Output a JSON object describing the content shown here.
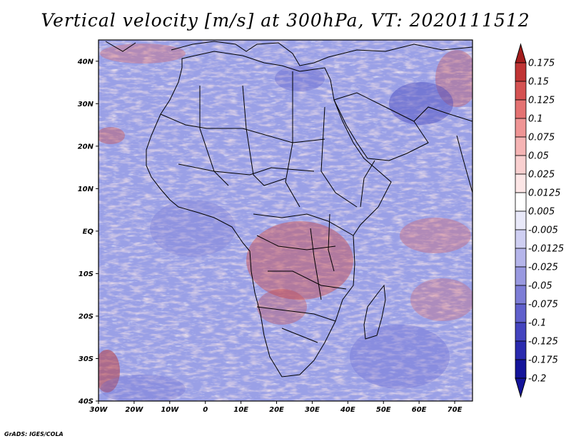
{
  "title": "Vertical velocity [m/s] at 300hPa, VT: 2020111512",
  "footer": "GrADS: IGES/COLA",
  "map": {
    "lon_range": [
      -30,
      75
    ],
    "lat_range": [
      -40,
      45
    ],
    "lat_ticks": [
      "40N",
      "30N",
      "20N",
      "10N",
      "EQ",
      "10S",
      "20S",
      "30S",
      "40S"
    ],
    "lon_ticks": [
      "30W",
      "20W",
      "10W",
      "0",
      "10E",
      "20E",
      "30E",
      "40E",
      "50E",
      "60E",
      "70E"
    ]
  },
  "colorbar": {
    "labels": [
      "0.175",
      "0.15",
      "0.125",
      "0.1",
      "0.075",
      "0.05",
      "0.025",
      "0.0125",
      "0.005",
      "-0.005",
      "-0.0125",
      "-0.025",
      "-0.05",
      "-0.075",
      "-0.1",
      "-0.125",
      "-0.175",
      "-0.2"
    ],
    "colors": [
      "#a31d1d",
      "#c03434",
      "#d55252",
      "#e47272",
      "#ef9595",
      "#f5b4b4",
      "#f9d0d0",
      "#fce6e6",
      "#ffffff",
      "#e9e9f9",
      "#cfcff2",
      "#b5b5ea",
      "#9999e0",
      "#7d7dd6",
      "#6060cc",
      "#4444bf",
      "#2a2aae",
      "#14149a"
    ]
  }
}
